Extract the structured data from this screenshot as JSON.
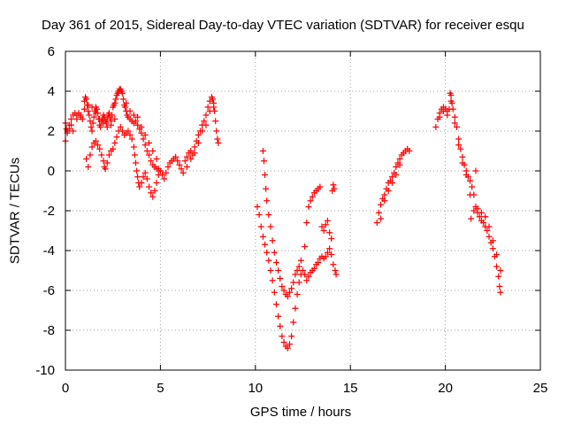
{
  "chart_data": {
    "type": "scatter",
    "title": "Day 361 of 2015, Sidereal Day-to-day VTEC variation (SDTVAR) for receiver esqu",
    "xlabel": "GPS time / hours",
    "ylabel": "SDTVAR / TECUs",
    "xlim": [
      0,
      25
    ],
    "ylim": [
      -10,
      6
    ],
    "xticks": [
      0,
      5,
      10,
      15,
      20,
      25
    ],
    "yticks": [
      -10,
      -8,
      -6,
      -4,
      -2,
      0,
      2,
      4,
      6
    ],
    "grid": true,
    "marker": "+",
    "color": "#ff0000",
    "points": [
      [
        0.0,
        1.5
      ],
      [
        0.1,
        2.0
      ],
      [
        0.2,
        2.3
      ],
      [
        0.3,
        2.6
      ],
      [
        0.4,
        2.8
      ],
      [
        0.5,
        2.9
      ],
      [
        0.6,
        2.8
      ],
      [
        0.7,
        2.9
      ],
      [
        0.8,
        2.7
      ],
      [
        0.9,
        2.6
      ],
      [
        1.0,
        3.5
      ],
      [
        1.05,
        3.7
      ],
      [
        1.1,
        3.6
      ],
      [
        1.15,
        3.3
      ],
      [
        1.2,
        3.0
      ],
      [
        1.25,
        2.8
      ],
      [
        1.3,
        2.5
      ],
      [
        1.35,
        2.2
      ],
      [
        1.4,
        2.0
      ],
      [
        1.45,
        2.4
      ],
      [
        1.5,
        2.7
      ],
      [
        1.55,
        3.0
      ],
      [
        1.6,
        3.2
      ],
      [
        1.65,
        3.1
      ],
      [
        1.7,
        2.9
      ],
      [
        1.75,
        2.6
      ],
      [
        1.8,
        2.3
      ],
      [
        1.85,
        2.2
      ],
      [
        1.9,
        2.5
      ],
      [
        1.95,
        2.6
      ],
      [
        2.0,
        2.8
      ],
      [
        2.05,
        2.7
      ],
      [
        2.1,
        2.5
      ],
      [
        2.15,
        2.4
      ],
      [
        2.2,
        2.6
      ],
      [
        2.25,
        2.8
      ],
      [
        2.3,
        2.9
      ],
      [
        2.35,
        2.7
      ],
      [
        2.4,
        2.5
      ],
      [
        2.45,
        2.8
      ],
      [
        2.5,
        3.2
      ],
      [
        2.55,
        3.3
      ],
      [
        2.6,
        3.4
      ],
      [
        2.65,
        3.6
      ],
      [
        2.7,
        3.8
      ],
      [
        2.75,
        3.9
      ],
      [
        2.8,
        4.0
      ],
      [
        2.85,
        4.1
      ],
      [
        2.9,
        4.1
      ],
      [
        2.95,
        4.0
      ],
      [
        3.0,
        3.9
      ],
      [
        3.05,
        3.6
      ],
      [
        3.1,
        3.3
      ],
      [
        3.15,
        3.2
      ],
      [
        3.2,
        3.0
      ],
      [
        3.25,
        2.8
      ],
      [
        3.3,
        2.7
      ],
      [
        3.4,
        2.6
      ],
      [
        3.5,
        2.5
      ],
      [
        3.6,
        2.4
      ],
      [
        3.7,
        2.5
      ],
      [
        3.8,
        2.3
      ],
      [
        3.9,
        2.1
      ],
      [
        4.0,
        1.9
      ],
      [
        4.1,
        1.6
      ],
      [
        4.2,
        1.3
      ],
      [
        4.3,
        1.0
      ],
      [
        4.4,
        0.8
      ],
      [
        4.5,
        0.5
      ],
      [
        4.6,
        0.3
      ],
      [
        4.7,
        0.2
      ],
      [
        4.8,
        0.1
      ],
      [
        4.9,
        0.1
      ],
      [
        5.0,
        0.0
      ],
      [
        1.1,
        0.6
      ],
      [
        1.2,
        0.2
      ],
      [
        1.3,
        0.8
      ],
      [
        1.4,
        1.2
      ],
      [
        1.5,
        1.4
      ],
      [
        1.6,
        1.5
      ],
      [
        1.7,
        1.3
      ],
      [
        1.8,
        1.1
      ],
      [
        1.9,
        0.8
      ],
      [
        2.0,
        0.5
      ],
      [
        2.05,
        0.2
      ],
      [
        2.1,
        0.1
      ],
      [
        2.2,
        0.4
      ],
      [
        2.3,
        0.8
      ],
      [
        2.4,
        1.0
      ],
      [
        2.5,
        1.1
      ],
      [
        2.6,
        1.4
      ],
      [
        2.7,
        1.7
      ],
      [
        2.8,
        2.0
      ],
      [
        2.9,
        2.2
      ],
      [
        3.0,
        2.0
      ],
      [
        3.1,
        1.8
      ],
      [
        3.2,
        1.9
      ],
      [
        3.3,
        2.0
      ],
      [
        3.4,
        1.8
      ],
      [
        3.5,
        1.6
      ],
      [
        3.6,
        1.2
      ],
      [
        3.65,
        0.8
      ],
      [
        3.7,
        0.4
      ],
      [
        3.75,
        0.0
      ],
      [
        3.8,
        -0.3
      ],
      [
        3.85,
        -0.6
      ],
      [
        3.9,
        -0.8
      ],
      [
        4.0,
        -0.6
      ],
      [
        4.1,
        -0.3
      ],
      [
        4.2,
        -0.1
      ],
      [
        4.3,
        -0.4
      ],
      [
        4.4,
        -0.8
      ],
      [
        4.5,
        -1.1
      ],
      [
        4.6,
        -1.3
      ],
      [
        4.7,
        -1.0
      ],
      [
        4.8,
        -0.6
      ],
      [
        4.9,
        -0.2
      ],
      [
        5.0,
        0.0
      ],
      [
        5.1,
        -0.2
      ],
      [
        5.2,
        -0.4
      ],
      [
        5.3,
        -0.1
      ],
      [
        5.4,
        0.2
      ],
      [
        5.5,
        0.4
      ],
      [
        5.6,
        0.5
      ],
      [
        5.7,
        0.6
      ],
      [
        5.8,
        0.7
      ],
      [
        5.9,
        0.5
      ],
      [
        6.0,
        0.3
      ],
      [
        6.1,
        0.1
      ],
      [
        6.2,
        -0.1
      ],
      [
        0.0,
        2.4
      ],
      [
        0.05,
        2.1
      ],
      [
        0.1,
        1.9
      ],
      [
        0.2,
        2.1
      ],
      [
        0.3,
        2.3
      ],
      [
        0.4,
        2.0
      ],
      [
        0.6,
        2.6
      ],
      [
        0.8,
        2.8
      ],
      [
        1.0,
        3.1
      ],
      [
        1.2,
        3.3
      ],
      [
        1.4,
        3.2
      ],
      [
        1.6,
        2.9
      ],
      [
        1.8,
        2.6
      ],
      [
        2.0,
        2.4
      ],
      [
        2.2,
        2.2
      ],
      [
        2.4,
        2.3
      ],
      [
        2.6,
        2.6
      ],
      [
        3.2,
        3.4
      ],
      [
        3.4,
        3.0
      ],
      [
        3.6,
        2.8
      ],
      [
        3.8,
        2.7
      ],
      [
        4.0,
        2.2
      ],
      [
        4.2,
        1.8
      ],
      [
        4.4,
        1.4
      ],
      [
        4.6,
        1.0
      ],
      [
        4.8,
        0.6
      ],
      [
        6.3,
        0.5
      ],
      [
        6.4,
        0.7
      ],
      [
        6.5,
        0.9
      ],
      [
        6.6,
        1.0
      ],
      [
        6.7,
        0.8
      ],
      [
        6.8,
        1.2
      ],
      [
        6.9,
        1.5
      ],
      [
        7.0,
        1.8
      ],
      [
        7.1,
        2.0
      ],
      [
        7.2,
        2.3
      ],
      [
        7.3,
        2.5
      ],
      [
        7.4,
        2.8
      ],
      [
        7.5,
        3.2
      ],
      [
        7.6,
        3.5
      ],
      [
        7.7,
        3.7
      ],
      [
        7.75,
        3.6
      ],
      [
        7.8,
        3.4
      ],
      [
        7.85,
        3.0
      ],
      [
        7.9,
        2.5
      ],
      [
        7.95,
        2.0
      ],
      [
        8.0,
        1.6
      ],
      [
        8.05,
        1.4
      ],
      [
        6.4,
        0.2
      ],
      [
        6.6,
        0.6
      ],
      [
        6.8,
        0.9
      ],
      [
        7.0,
        1.4
      ],
      [
        7.2,
        2.0
      ],
      [
        7.4,
        2.3
      ],
      [
        7.6,
        3.0
      ],
      [
        7.8,
        3.2
      ],
      [
        10.1,
        -1.8
      ],
      [
        10.2,
        -2.2
      ],
      [
        10.3,
        -2.8
      ],
      [
        10.4,
        -3.3
      ],
      [
        10.5,
        -3.7
      ],
      [
        10.6,
        -4.1
      ],
      [
        10.7,
        -4.5
      ],
      [
        10.8,
        -5.0
      ],
      [
        10.9,
        -5.5
      ],
      [
        11.0,
        -6.1
      ],
      [
        11.1,
        -6.7
      ],
      [
        11.2,
        -7.3
      ],
      [
        11.3,
        -7.8
      ],
      [
        11.4,
        -8.3
      ],
      [
        11.5,
        -8.6
      ],
      [
        11.6,
        -8.8
      ],
      [
        11.7,
        -8.9
      ],
      [
        11.8,
        -8.7
      ],
      [
        11.9,
        -8.3
      ],
      [
        12.0,
        -7.6
      ],
      [
        12.1,
        -6.9
      ],
      [
        12.2,
        -6.2
      ],
      [
        12.3,
        -5.6
      ],
      [
        12.4,
        -5.2
      ],
      [
        12.5,
        -5.0
      ],
      [
        12.6,
        -5.2
      ],
      [
        12.7,
        -5.5
      ],
      [
        12.8,
        -5.3
      ],
      [
        12.9,
        -5.1
      ],
      [
        13.0,
        -5.0
      ],
      [
        13.1,
        -4.9
      ],
      [
        13.2,
        -4.7
      ],
      [
        13.3,
        -4.6
      ],
      [
        13.4,
        -4.4
      ],
      [
        13.5,
        -4.3
      ],
      [
        13.6,
        -4.4
      ],
      [
        13.7,
        -4.3
      ],
      [
        13.8,
        -4.1
      ],
      [
        13.9,
        -3.9
      ],
      [
        14.0,
        -4.2
      ],
      [
        14.1,
        -4.7
      ],
      [
        14.2,
        -5.0
      ],
      [
        14.25,
        -5.2
      ],
      [
        10.4,
        1.0
      ],
      [
        10.45,
        0.5
      ],
      [
        10.5,
        -0.2
      ],
      [
        10.55,
        -0.9
      ],
      [
        10.6,
        -1.5
      ],
      [
        10.7,
        -2.2
      ],
      [
        10.8,
        -2.8
      ],
      [
        10.9,
        -3.5
      ],
      [
        11.0,
        -4.1
      ],
      [
        11.1,
        -4.6
      ],
      [
        11.2,
        -5.0
      ],
      [
        11.3,
        -5.4
      ],
      [
        11.4,
        -5.8
      ],
      [
        11.5,
        -6.0
      ],
      [
        11.6,
        -6.2
      ],
      [
        11.7,
        -6.3
      ],
      [
        11.8,
        -6.1
      ],
      [
        11.9,
        -5.9
      ],
      [
        12.0,
        -5.6
      ],
      [
        12.1,
        -5.2
      ],
      [
        12.2,
        -5.0
      ],
      [
        12.3,
        -4.8
      ],
      [
        12.4,
        -4.5
      ],
      [
        12.6,
        -3.8
      ],
      [
        12.7,
        -2.6
      ],
      [
        12.8,
        -1.8
      ],
      [
        12.9,
        -1.5
      ],
      [
        13.0,
        -1.3
      ],
      [
        13.1,
        -1.1
      ],
      [
        13.2,
        -1.0
      ],
      [
        13.3,
        -0.9
      ],
      [
        13.4,
        -0.8
      ],
      [
        13.5,
        -2.8
      ],
      [
        13.6,
        -3.0
      ],
      [
        13.7,
        -2.7
      ],
      [
        13.8,
        -2.5
      ],
      [
        13.9,
        -3.1
      ],
      [
        14.0,
        -3.4
      ],
      [
        14.05,
        -1.0
      ],
      [
        14.1,
        -0.7
      ],
      [
        14.15,
        -0.9
      ],
      [
        16.4,
        -2.6
      ],
      [
        16.5,
        -2.1
      ],
      [
        16.6,
        -1.7
      ],
      [
        16.7,
        -1.4
      ],
      [
        16.8,
        -1.2
      ],
      [
        16.9,
        -0.9
      ],
      [
        17.0,
        -0.6
      ],
      [
        17.1,
        -0.5
      ],
      [
        17.2,
        -0.3
      ],
      [
        17.3,
        -0.1
      ],
      [
        17.4,
        0.2
      ],
      [
        17.5,
        0.4
      ],
      [
        17.6,
        0.6
      ],
      [
        17.7,
        0.8
      ],
      [
        17.8,
        0.9
      ],
      [
        17.9,
        1.0
      ],
      [
        18.0,
        1.1
      ],
      [
        18.1,
        1.0
      ],
      [
        16.6,
        -2.4
      ],
      [
        16.8,
        -1.5
      ],
      [
        17.0,
        -1.0
      ],
      [
        17.2,
        -0.6
      ],
      [
        17.4,
        -0.2
      ],
      [
        17.6,
        0.3
      ],
      [
        19.5,
        2.2
      ],
      [
        19.6,
        2.6
      ],
      [
        19.7,
        2.9
      ],
      [
        19.8,
        3.1
      ],
      [
        19.9,
        3.2
      ],
      [
        20.0,
        3.1
      ],
      [
        20.1,
        3.0
      ],
      [
        20.2,
        3.1
      ],
      [
        20.25,
        3.9
      ],
      [
        20.3,
        3.8
      ],
      [
        20.35,
        3.4
      ],
      [
        20.4,
        3.1
      ],
      [
        20.5,
        2.7
      ],
      [
        20.6,
        2.2
      ],
      [
        20.7,
        1.6
      ],
      [
        20.8,
        1.1
      ],
      [
        20.9,
        0.7
      ],
      [
        21.0,
        0.3
      ],
      [
        21.1,
        0.0
      ],
      [
        21.2,
        -0.3
      ],
      [
        21.3,
        -0.5
      ],
      [
        21.4,
        -0.8
      ],
      [
        21.5,
        -1.2
      ],
      [
        21.6,
        -1.8
      ],
      [
        21.7,
        -2.1
      ],
      [
        21.8,
        -2.3
      ],
      [
        21.9,
        -2.5
      ],
      [
        22.0,
        -2.6
      ],
      [
        22.1,
        -2.8
      ],
      [
        22.2,
        -3.0
      ],
      [
        22.3,
        -3.3
      ],
      [
        22.4,
        -3.6
      ],
      [
        22.5,
        -3.9
      ],
      [
        22.6,
        -4.3
      ],
      [
        22.7,
        -4.8
      ],
      [
        22.8,
        -5.3
      ],
      [
        22.85,
        -5.8
      ],
      [
        22.9,
        -6.1
      ],
      [
        19.7,
        2.7
      ],
      [
        19.9,
        3.0
      ],
      [
        20.1,
        2.8
      ],
      [
        20.3,
        3.5
      ],
      [
        20.5,
        2.4
      ],
      [
        20.7,
        1.3
      ],
      [
        20.9,
        0.4
      ],
      [
        21.1,
        -0.2
      ],
      [
        21.3,
        -1.2
      ],
      [
        21.35,
        -2.4
      ],
      [
        21.5,
        -2.0
      ],
      [
        21.6,
        0.0
      ],
      [
        21.7,
        -1.9
      ],
      [
        21.9,
        -2.1
      ],
      [
        22.1,
        -2.3
      ],
      [
        22.3,
        -2.8
      ],
      [
        22.5,
        -3.5
      ],
      [
        22.7,
        -4.2
      ],
      [
        22.9,
        -5.0
      ]
    ]
  }
}
